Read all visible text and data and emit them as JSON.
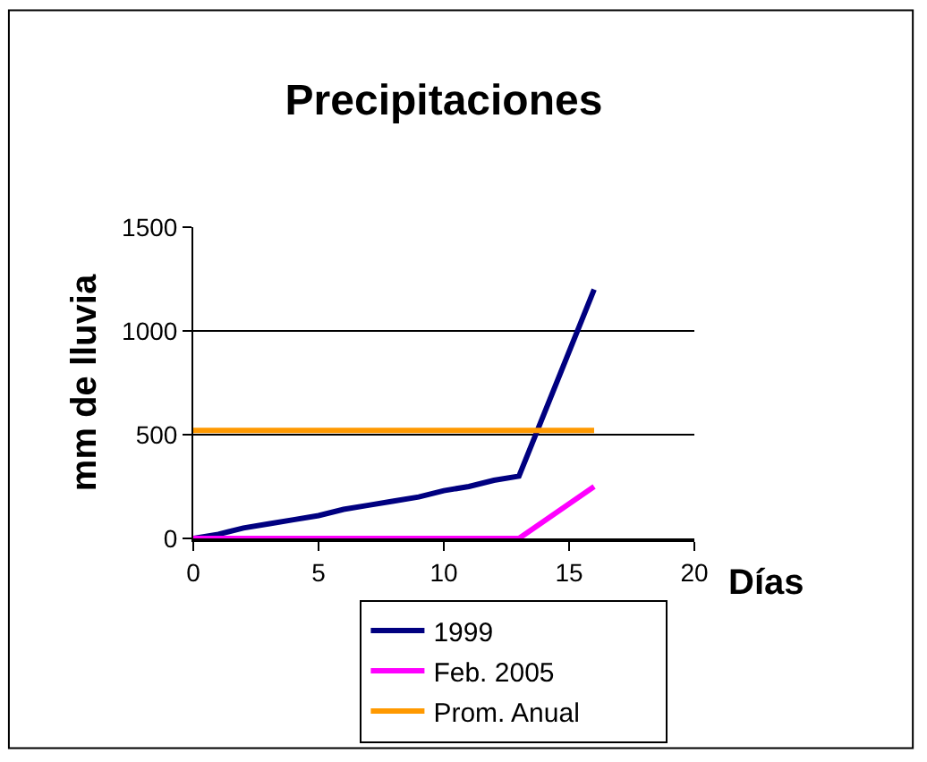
{
  "chart_data": {
    "type": "line",
    "title": "Precipitaciones",
    "xlabel": "Días",
    "ylabel": "mm de lluvia",
    "series": [
      {
        "name": "1999",
        "color": "#000080",
        "x": [
          0,
          1,
          2,
          3,
          4,
          5,
          6,
          7,
          8,
          9,
          10,
          11,
          12,
          13,
          16
        ],
        "values": [
          0,
          20,
          50,
          70,
          90,
          110,
          140,
          160,
          180,
          200,
          230,
          250,
          280,
          300,
          1200
        ]
      },
      {
        "name": "Feb. 2005",
        "color": "#ff00ff",
        "x": [
          0,
          13,
          16
        ],
        "values": [
          0,
          0,
          250
        ]
      },
      {
        "name": "Prom. Anual",
        "color": "#ff9900",
        "x": [
          0,
          16
        ],
        "values": [
          520,
          520
        ]
      }
    ],
    "xlim": [
      0,
      20
    ],
    "xticks": [
      0,
      5,
      10,
      15,
      20
    ],
    "ylim": [
      0,
      1500
    ],
    "yticks": [
      0,
      500,
      1000,
      1500
    ],
    "grid": "y",
    "legend": "bottom",
    "marker": "none",
    "line_style": "solid"
  }
}
